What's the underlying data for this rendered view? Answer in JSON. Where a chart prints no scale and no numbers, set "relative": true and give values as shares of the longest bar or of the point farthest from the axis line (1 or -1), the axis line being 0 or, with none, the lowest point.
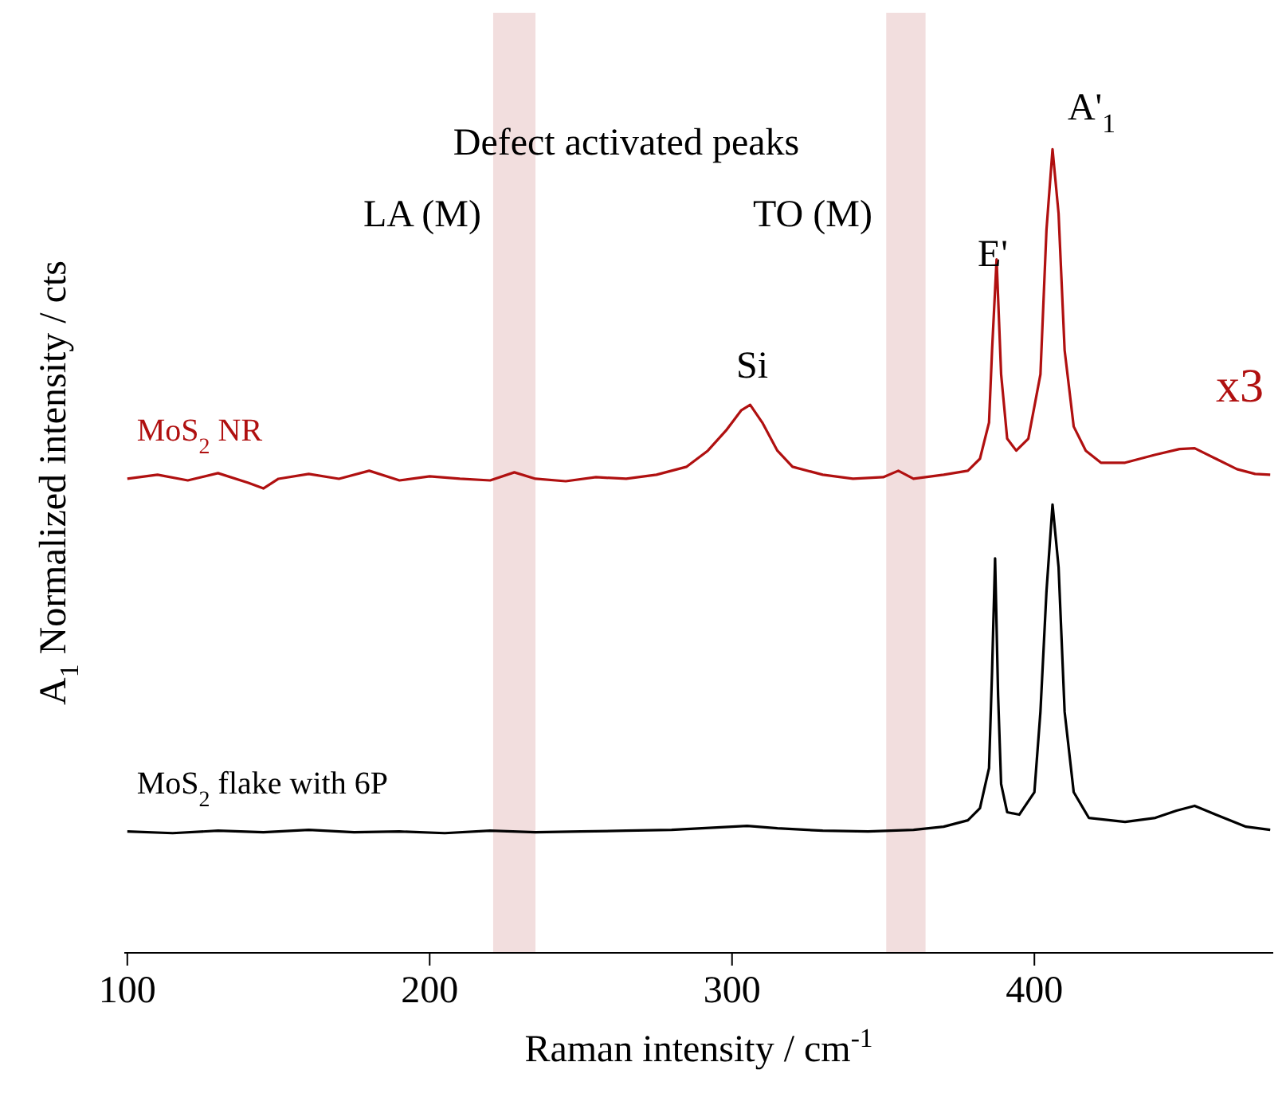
{
  "chart_data": {
    "type": "line",
    "relative": true,
    "xlabel": "Raman intensity / cm$^{-1}$",
    "ylabel": "A$_{1}$  Normalized intensity / cts",
    "xlim": [
      99,
      479
    ],
    "xticks": [
      100,
      200,
      300,
      400
    ],
    "marker": "none",
    "line_style": "solid",
    "series": [
      {
        "name": "MoS$_{2}$ NR",
        "color": "#b01010",
        "x": [
          100,
          110,
          120,
          130,
          140,
          145,
          150,
          160,
          170,
          180,
          190,
          200,
          210,
          220,
          228,
          235,
          245,
          255,
          265,
          275,
          285,
          292,
          298,
          303,
          306,
          310,
          315,
          320,
          330,
          340,
          350,
          355,
          360,
          370,
          378,
          382,
          385,
          386,
          387.5,
          389,
          391,
          394,
          398,
          402,
          404,
          406,
          408,
          410,
          413,
          417,
          422,
          430,
          440,
          448,
          453,
          460,
          467,
          473,
          478
        ],
        "values": [
          0.59,
          0.595,
          0.588,
          0.597,
          0.585,
          0.578,
          0.59,
          0.596,
          0.59,
          0.6,
          0.588,
          0.593,
          0.59,
          0.588,
          0.598,
          0.59,
          0.587,
          0.592,
          0.59,
          0.595,
          0.605,
          0.625,
          0.65,
          0.675,
          0.682,
          0.66,
          0.625,
          0.605,
          0.595,
          0.59,
          0.592,
          0.6,
          0.59,
          0.595,
          0.6,
          0.615,
          0.66,
          0.75,
          0.863,
          0.72,
          0.64,
          0.625,
          0.64,
          0.72,
          0.9,
          1.0,
          0.92,
          0.75,
          0.655,
          0.625,
          0.61,
          0.61,
          0.62,
          0.627,
          0.628,
          0.615,
          0.602,
          0.596,
          0.595
        ]
      },
      {
        "name": "MoS$_{2}$ flake with 6P",
        "color": "#000000",
        "x": [
          100,
          115,
          130,
          145,
          160,
          175,
          190,
          205,
          220,
          235,
          250,
          265,
          280,
          295,
          305,
          315,
          330,
          345,
          360,
          370,
          378,
          382,
          385,
          386,
          387,
          388,
          389,
          391,
          395,
          400,
          402,
          404,
          406,
          408,
          410,
          413,
          418,
          430,
          440,
          447,
          453,
          460,
          470,
          478
        ],
        "values": [
          0.151,
          0.149,
          0.152,
          0.15,
          0.153,
          0.15,
          0.151,
          0.149,
          0.152,
          0.15,
          0.151,
          0.152,
          0.153,
          0.156,
          0.158,
          0.155,
          0.152,
          0.151,
          0.153,
          0.157,
          0.165,
          0.18,
          0.23,
          0.35,
          0.491,
          0.32,
          0.21,
          0.175,
          0.172,
          0.2,
          0.3,
          0.45,
          0.558,
          0.48,
          0.3,
          0.2,
          0.168,
          0.163,
          0.168,
          0.177,
          0.183,
          0.172,
          0.157,
          0.153
        ]
      }
    ],
    "bands": [
      {
        "axis": "x",
        "from": 221,
        "to": 235,
        "color": "#f2dede"
      },
      {
        "axis": "x",
        "from": 351,
        "to": 364,
        "color": "#f2dede"
      }
    ],
    "annotations": [
      "Defect activated peaks",
      "LA (M)",
      "TO (M)",
      "Si",
      "E'",
      "A'$_{1}$",
      "x3"
    ]
  }
}
